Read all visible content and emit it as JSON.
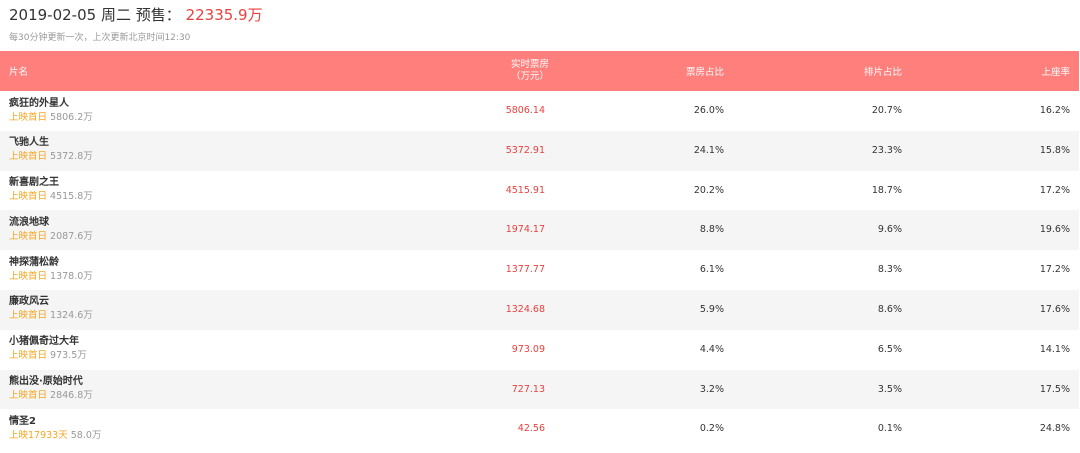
{
  "header": {
    "date": "2019-02-05",
    "weekday": "周二",
    "presale_label": "预售：",
    "presale_value": "22335.9万",
    "update_info": "每30分钟更新一次，上次更新北京时间12:30"
  },
  "table": {
    "columns": {
      "name": "片名",
      "realtime": "实时票房",
      "realtime_unit": "（万元）",
      "box_share": "票房占比",
      "schedule_share": "排片占比",
      "occupancy": "上座率"
    },
    "rows": [
      {
        "name": "疯狂的外星人",
        "tag": "上映首日",
        "total": "5806.2万",
        "box": "5806.14",
        "share": "26.0%",
        "sched": "20.7%",
        "occ": "16.2%"
      },
      {
        "name": "飞驰人生",
        "tag": "上映首日",
        "total": "5372.8万",
        "box": "5372.91",
        "share": "24.1%",
        "sched": "23.3%",
        "occ": "15.8%"
      },
      {
        "name": "新喜剧之王",
        "tag": "上映首日",
        "total": "4515.8万",
        "box": "4515.91",
        "share": "20.2%",
        "sched": "18.7%",
        "occ": "17.2%"
      },
      {
        "name": "流浪地球",
        "tag": "上映首日",
        "total": "2087.6万",
        "box": "1974.17",
        "share": "8.8%",
        "sched": "9.6%",
        "occ": "19.6%"
      },
      {
        "name": "神探蒲松龄",
        "tag": "上映首日",
        "total": "1378.0万",
        "box": "1377.77",
        "share": "6.1%",
        "sched": "8.3%",
        "occ": "17.2%"
      },
      {
        "name": "廉政风云",
        "tag": "上映首日",
        "total": "1324.6万",
        "box": "1324.68",
        "share": "5.9%",
        "sched": "8.6%",
        "occ": "17.6%"
      },
      {
        "name": "小猪佩奇过大年",
        "tag": "上映首日",
        "total": "973.5万",
        "box": "973.09",
        "share": "4.4%",
        "sched": "6.5%",
        "occ": "14.1%"
      },
      {
        "name": "熊出没·原始时代",
        "tag": "上映首日",
        "total": "2846.8万",
        "box": "727.13",
        "share": "3.2%",
        "sched": "3.5%",
        "occ": "17.5%"
      },
      {
        "name": "情圣2",
        "tag": "上映17933天",
        "total": "58.0万",
        "box": "42.56",
        "share": "0.2%",
        "sched": "0.1%",
        "occ": "24.8%"
      }
    ]
  },
  "colors": {
    "header_bg": "#ff7f7d",
    "highlight_red": "#e8413f",
    "tag_orange": "#f5a623",
    "alt_row": "#f5f5f5"
  }
}
